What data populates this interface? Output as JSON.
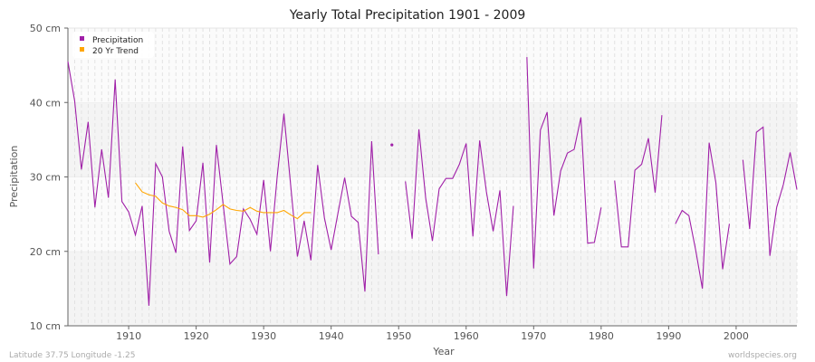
{
  "chart_data": {
    "type": "line",
    "title": "Yearly Total Precipitation 1901 - 2009",
    "xlabel": "Year",
    "ylabel": "Precipitation",
    "xlim": [
      1901,
      2009
    ],
    "ylim": [
      10,
      50
    ],
    "y_ticks": [
      "10 cm",
      "20 cm",
      "30 cm",
      "40 cm",
      "50 cm"
    ],
    "y_tick_values": [
      10,
      20,
      30,
      40,
      50
    ],
    "x_ticks": [
      "1910",
      "1920",
      "1930",
      "1940",
      "1950",
      "1960",
      "1970",
      "1980",
      "1990",
      "2000"
    ],
    "x_tick_values": [
      1910,
      1920,
      1930,
      1940,
      1950,
      1960,
      1970,
      1980,
      1990,
      2000
    ],
    "grid": true,
    "legend_position": "top-left",
    "series": [
      {
        "name": "Precipitation",
        "color": "#a020a8",
        "start_year": 1901,
        "values": [
          45.5,
          40.2,
          31.0,
          37.4,
          25.9,
          33.7,
          27.2,
          43.1,
          26.7,
          25.3,
          22.2,
          26.1,
          12.7,
          31.8,
          30.0,
          22.7,
          19.8,
          34.1,
          22.8,
          24.1,
          31.9,
          18.5,
          34.3,
          26.3,
          18.3,
          19.3,
          25.7,
          24.3,
          22.3,
          29.6,
          20.0,
          30.0,
          38.5,
          28.9,
          19.3,
          24.1,
          18.8,
          31.6,
          24.5,
          20.2,
          25.1,
          29.9,
          24.7,
          23.9,
          14.6,
          34.8,
          19.6,
          null,
          34.3,
          null,
          29.4,
          21.7,
          36.4,
          27.2,
          21.4,
          28.4,
          29.8,
          29.8,
          31.7,
          34.5,
          22.0,
          34.9,
          28.0,
          22.7,
          28.2,
          14.0,
          26.1,
          null,
          46.1,
          17.7,
          36.3,
          38.7,
          24.8,
          30.8,
          33.2,
          33.7,
          38.0,
          21.1,
          21.2,
          25.9,
          null,
          29.5,
          20.6,
          20.6,
          30.9,
          31.7,
          35.2,
          27.9,
          38.3,
          null,
          23.7,
          25.5,
          24.8,
          20.2,
          15.0,
          34.6,
          29.2,
          17.6,
          23.7,
          null,
          32.3,
          23.0,
          36.0,
          36.7,
          19.4,
          25.9,
          29.0,
          33.3,
          28.3
        ]
      },
      {
        "name": "20 Yr Trend",
        "color": "#ffa500",
        "start_year": 1911,
        "values": [
          29.2,
          28.0,
          27.6,
          27.4,
          26.5,
          26.1,
          25.9,
          25.6,
          24.8,
          24.8,
          24.6,
          25.0,
          25.6,
          26.3,
          25.7,
          25.5,
          25.4,
          25.9,
          25.4,
          25.2,
          25.2,
          25.2,
          25.5,
          24.9,
          24.4,
          25.2,
          25.2
        ]
      }
    ]
  },
  "footer": {
    "location": "Latitude 37.75 Longitude -1.25",
    "source": "worldspecies.org"
  }
}
